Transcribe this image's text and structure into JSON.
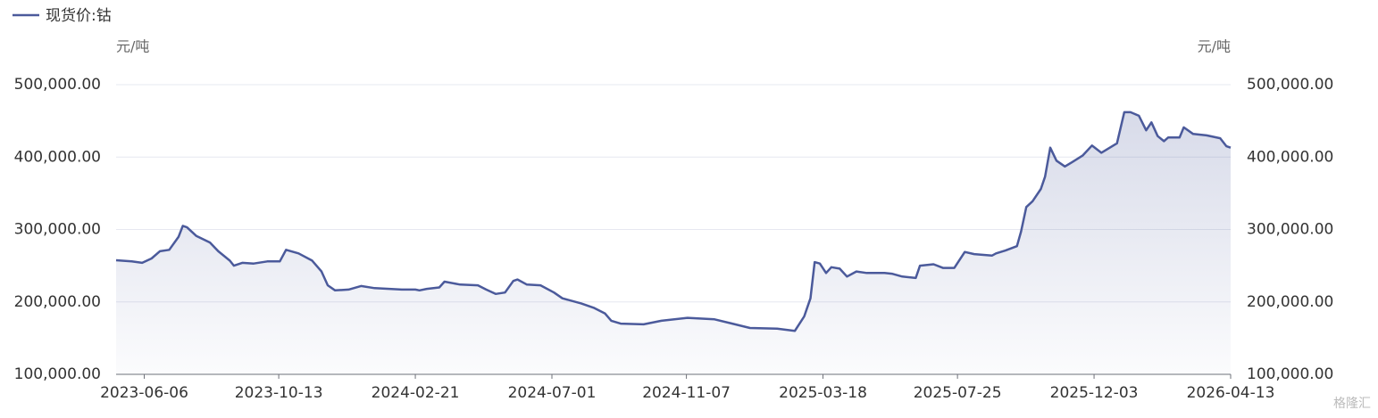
{
  "chart_data": {
    "type": "line",
    "y_label": "元/吨",
    "y2_label": "元/吨",
    "watermark": "格隆汇",
    "xlim": [
      "2023-05-10",
      "2026-04-13"
    ],
    "xticks": [
      "2023-06-06",
      "2023-10-13",
      "2024-02-21",
      "2024-07-01",
      "2024-11-07",
      "2025-03-18",
      "2025-07-25",
      "2025-12-03",
      "2026-04-13"
    ],
    "ylim": [
      100000,
      500000
    ],
    "yticks": [
      {
        "value": 100000,
        "label": "100,000.00"
      },
      {
        "value": 200000,
        "label": "200,000.00"
      },
      {
        "value": 300000,
        "label": "300,000.00"
      },
      {
        "value": 400000,
        "label": "400,000.00"
      },
      {
        "value": 500000,
        "label": "500,000.00"
      }
    ],
    "y2lim": [
      100000,
      500000
    ],
    "y2ticks": [
      {
        "value": 100000,
        "label": "100,000.00"
      },
      {
        "value": 200000,
        "label": "200,000.00"
      },
      {
        "value": 300000,
        "label": "300,000.00"
      },
      {
        "value": 400000,
        "label": "400,000.00"
      },
      {
        "value": 500000,
        "label": "500,000.00"
      }
    ],
    "grid": true,
    "legend": "top-left",
    "x": [
      "2023-05-10",
      "2023-05-25",
      "2023-06-04",
      "2023-06-13",
      "2023-06-21",
      "2023-06-30",
      "2023-07-09",
      "2023-07-13",
      "2023-07-17",
      "2023-07-26",
      "2023-08-08",
      "2023-08-16",
      "2023-08-27",
      "2023-08-31",
      "2023-09-08",
      "2023-09-19",
      "2023-10-02",
      "2023-10-14",
      "2023-10-20",
      "2023-11-01",
      "2023-11-14",
      "2023-11-23",
      "2023-11-29",
      "2023-12-06",
      "2023-12-19",
      "2023-12-31",
      "2024-01-13",
      "2024-02-08",
      "2024-02-21",
      "2024-02-25",
      "2024-03-03",
      "2024-03-15",
      "2024-03-20",
      "2024-04-04",
      "2024-04-21",
      "2024-04-29",
      "2024-05-08",
      "2024-05-17",
      "2024-05-25",
      "2024-05-29",
      "2024-06-07",
      "2024-06-20",
      "2024-07-03",
      "2024-07-11",
      "2024-07-29",
      "2024-08-10",
      "2024-08-21",
      "2024-08-27",
      "2024-09-05",
      "2024-09-27",
      "2024-10-14",
      "2024-11-08",
      "2024-12-04",
      "2024-12-21",
      "2025-01-07",
      "2025-02-02",
      "2025-02-19",
      "2025-02-28",
      "2025-03-06",
      "2025-03-10",
      "2025-03-15",
      "2025-03-21",
      "2025-03-26",
      "2025-04-03",
      "2025-04-10",
      "2025-04-19",
      "2025-04-29",
      "2025-05-16",
      "2025-05-23",
      "2025-06-02",
      "2025-06-15",
      "2025-06-19",
      "2025-07-02",
      "2025-07-11",
      "2025-07-22",
      "2025-08-01",
      "2025-08-10",
      "2025-08-27",
      "2025-08-31",
      "2025-09-09",
      "2025-09-20",
      "2025-09-24",
      "2025-09-29",
      "2025-10-05",
      "2025-10-13",
      "2025-10-17",
      "2025-10-22",
      "2025-10-28",
      "2025-11-05",
      "2025-11-12",
      "2025-11-22",
      "2025-12-01",
      "2025-12-10",
      "2025-12-25",
      "2026-01-01",
      "2026-01-07",
      "2026-01-15",
      "2026-01-22",
      "2026-01-27",
      "2026-02-02",
      "2026-02-08",
      "2026-02-12",
      "2026-02-23",
      "2026-02-27",
      "2026-03-08",
      "2026-03-21",
      "2026-04-03",
      "2026-04-09",
      "2026-04-13"
    ],
    "series": [
      {
        "name": "现货价:钴",
        "color": "#4b5a9b",
        "values": [
          257500,
          256000,
          254000,
          260000,
          270000,
          272000,
          290000,
          305000,
          303000,
          291000,
          282000,
          270000,
          257000,
          250000,
          254000,
          253000,
          256000,
          256000,
          272000,
          267000,
          257000,
          242000,
          223000,
          216000,
          217000,
          222000,
          219000,
          217000,
          217000,
          216000,
          218000,
          220000,
          228000,
          224000,
          223000,
          217000,
          211000,
          213000,
          229000,
          231000,
          224000,
          223000,
          213000,
          205000,
          198000,
          192000,
          184000,
          174000,
          170000,
          169000,
          174000,
          178000,
          176000,
          170000,
          164000,
          163000,
          160000,
          180000,
          205000,
          255000,
          253000,
          240000,
          248000,
          246000,
          235000,
          242000,
          240000,
          240000,
          239000,
          235000,
          233000,
          250000,
          252000,
          247000,
          247000,
          269000,
          266000,
          264000,
          267000,
          271000,
          277000,
          297000,
          331000,
          339000,
          356000,
          373000,
          413000,
          395000,
          387000,
          393000,
          402000,
          416000,
          406000,
          419000,
          462000,
          462000,
          457000,
          437000,
          448000,
          429000,
          422000,
          427000,
          427000,
          441000,
          432000,
          430000,
          426000,
          415000,
          413000
        ]
      }
    ]
  }
}
